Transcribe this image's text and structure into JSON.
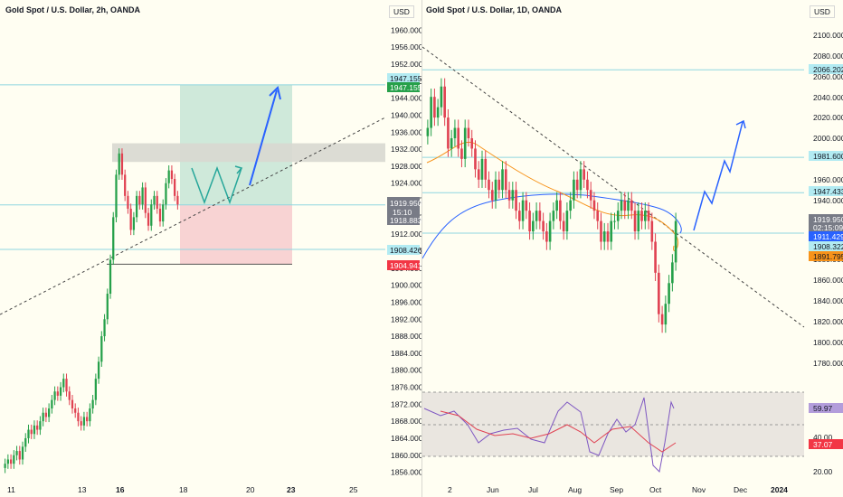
{
  "left": {
    "title": "Gold Spot / U.S. Dollar, 2h, OANDA",
    "currency": "USD",
    "y_ticks": [
      "1960.000",
      "1956.000",
      "1952.000",
      "1948.000",
      "1944.000",
      "1940.000",
      "1936.000",
      "1932.000",
      "1928.000",
      "1924.000",
      "1920.000",
      "1916.000",
      "1912.000",
      "1908.000",
      "1904.000",
      "1900.000",
      "1896.000",
      "1892.000",
      "1888.000",
      "1884.000",
      "1880.000",
      "1876.000",
      "1872.000",
      "1868.000",
      "1864.000",
      "1860.000",
      "1856.000"
    ],
    "x_ticks": [
      "11",
      "13",
      "16",
      "18",
      "20",
      "23",
      "25"
    ],
    "tags": {
      "target_1": "1947.155",
      "target_2": "1947.155",
      "price": "1919.950",
      "countdown": "15:10",
      "entry": "1918.883",
      "support": "1908.426",
      "stop": "1904.941"
    }
  },
  "right": {
    "title": "Gold Spot / U.S. Dollar, 1D, OANDA",
    "currency": "USD",
    "y_ticks": [
      "2100.000",
      "2080.000",
      "2060.000",
      "2040.000",
      "2020.000",
      "2000.000",
      "1960.000",
      "1940.000",
      "1880.000",
      "1860.000",
      "1840.000",
      "1820.000",
      "1800.000",
      "1780.000"
    ],
    "x_ticks": [
      "2",
      "Jun",
      "Jul",
      "Aug",
      "Sep",
      "Oct",
      "Nov",
      "Dec",
      "2024"
    ],
    "tags": {
      "resistance_top": "2066.202",
      "resistance_mid": "1981.600",
      "level_1947": "1947.433",
      "price": "1919.950",
      "countdown": "02:15:09",
      "ma_blue": "1911.429",
      "support": "1908.322",
      "ma_orange": "1891.795"
    },
    "rsi": {
      "value_blue": "59.97",
      "value_red": "37.07",
      "ticks": [
        "40.00",
        "20.00"
      ]
    }
  },
  "colors": {
    "bull": "#26a04a",
    "bear": "#e04252",
    "blue_tag": "#2962ff",
    "cyan_tag": "#b2ebf2",
    "red_tag": "#f23645",
    "orange_tag": "#f7931a",
    "gray_tag": "#787b86"
  },
  "chart_data": [
    {
      "type": "candlestick",
      "title": "Gold Spot / U.S. Dollar, 2h, OANDA",
      "x": [
        "11",
        "13",
        "16",
        "18",
        "20",
        "23",
        "25"
      ],
      "ylim": [
        1854,
        1962
      ],
      "levels": [
        1947.155,
        1919.95,
        1918.883,
        1908.426,
        1904.941
      ],
      "closes": [
        1858,
        1859,
        1858,
        1860,
        1861,
        1859,
        1862,
        1864,
        1866,
        1865,
        1867,
        1866,
        1868,
        1870,
        1869,
        1871,
        1873,
        1875,
        1874,
        1876,
        1878,
        1875,
        1873,
        1871,
        1870,
        1868,
        1867,
        1869,
        1868,
        1871,
        1873,
        1878,
        1882,
        1888,
        1892,
        1898,
        1906,
        1916,
        1926,
        1931,
        1926,
        1921,
        1918,
        1913,
        1916,
        1921,
        1919,
        1923,
        1917,
        1914,
        1919,
        1921,
        1918,
        1915,
        1919,
        1924,
        1927,
        1925,
        1921,
        1919
      ]
    },
    {
      "type": "candlestick",
      "title": "Gold Spot / U.S. Dollar, 1D, OANDA",
      "x": [
        "2",
        "Jun",
        "Jul",
        "Aug",
        "Sep",
        "Oct",
        "Nov",
        "Dec",
        "2024"
      ],
      "ylim": [
        1770,
        2110
      ],
      "levels": [
        2066.202,
        1981.6,
        1947.433,
        1919.95,
        1911.429,
        1908.322,
        1891.795
      ],
      "closes": [
        2010,
        2040,
        2020,
        2030,
        2050,
        2020,
        1990,
        2000,
        2010,
        1990,
        1980,
        2010,
        2000,
        1990,
        1970,
        1960,
        1980,
        1960,
        1950,
        1940,
        1960,
        1950,
        1970,
        1950,
        1940,
        1950,
        1930,
        1920,
        1940,
        1930,
        1910,
        1920,
        1930,
        1920,
        1910,
        1900,
        1920,
        1930,
        1940,
        1920,
        1910,
        1930,
        1940,
        1960,
        1950,
        1970,
        1960,
        1950,
        1940,
        1930,
        1920,
        1900,
        1910,
        1900,
        1920,
        1920,
        1930,
        1940,
        1930,
        1940,
        1930,
        1910,
        1930,
        1920,
        1930,
        1920,
        1900,
        1870,
        1830,
        1820,
        1840,
        1860,
        1880,
        1920
      ]
    }
  ]
}
